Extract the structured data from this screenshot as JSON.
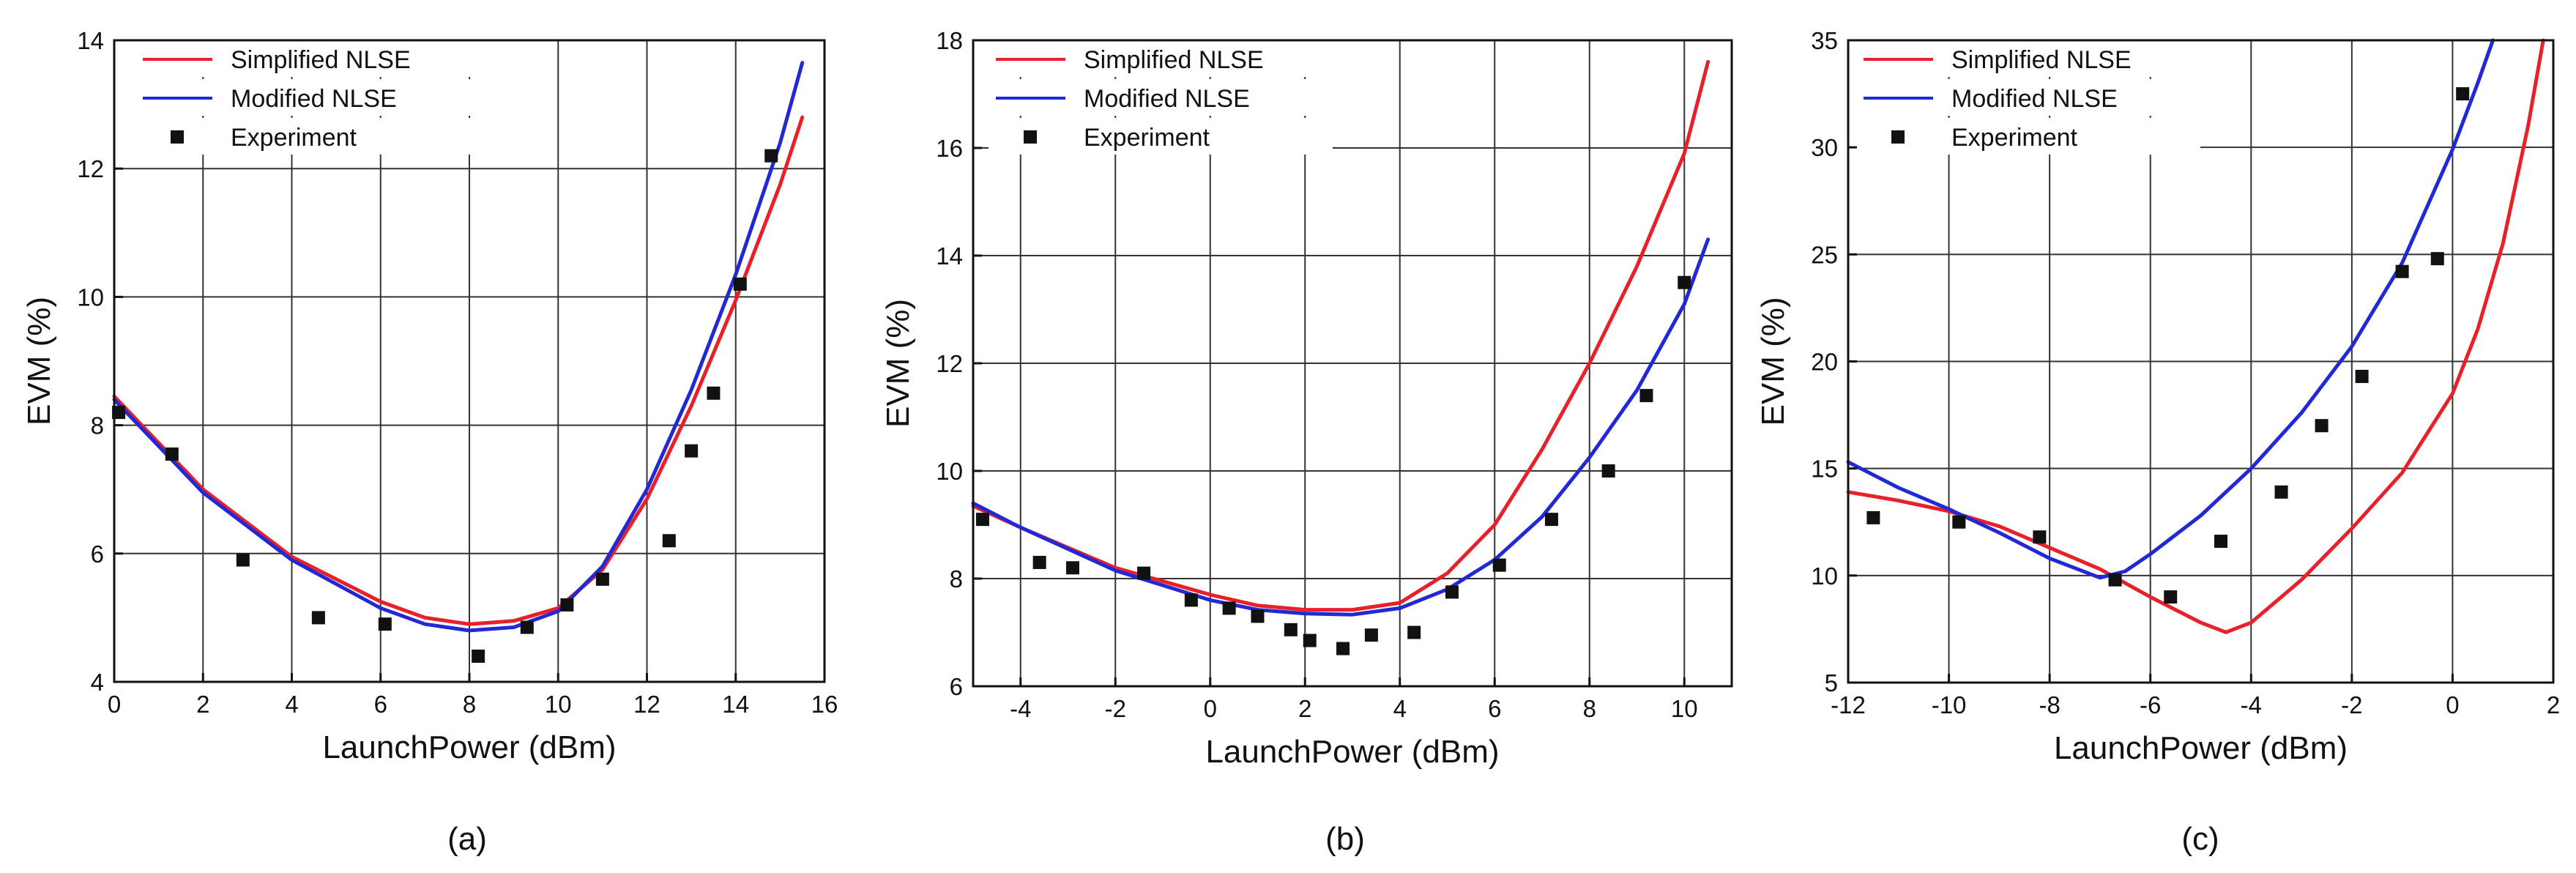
{
  "colors": {
    "simplified": "#e8202a",
    "modified": "#2128d4",
    "experiment": "#111111",
    "grid": "#333333"
  },
  "chart_data": [
    {
      "type": "line",
      "panel_label": "(a)",
      "xlabel": "LaunchPower (dBm)",
      "ylabel": "EVM (%)",
      "xlim": [
        0,
        16
      ],
      "ylim": [
        4,
        14
      ],
      "xticks": [
        0,
        2,
        4,
        6,
        8,
        10,
        12,
        14,
        16
      ],
      "yticks": [
        4,
        6,
        8,
        10,
        12,
        14
      ],
      "xgrid": [
        2,
        4,
        6,
        8,
        10,
        12,
        14
      ],
      "ygrid": [
        6,
        8,
        10,
        12
      ],
      "grid": true,
      "legend": {
        "placement": "top-left",
        "entries": [
          "Simplified NLSE",
          "Modified NLSE",
          "Experiment"
        ]
      },
      "series": [
        {
          "name": "Simplified NLSE",
          "kind": "line",
          "color_key": "simplified",
          "x": [
            0,
            2,
            4,
            6,
            7,
            8,
            9,
            10,
            11,
            12,
            13,
            14,
            15,
            15.5
          ],
          "y": [
            8.45,
            7.0,
            5.95,
            5.25,
            5.0,
            4.9,
            4.95,
            5.15,
            5.75,
            6.85,
            8.3,
            9.95,
            11.75,
            12.8
          ]
        },
        {
          "name": "Modified NLSE",
          "kind": "line",
          "color_key": "modified",
          "x": [
            0,
            2,
            4,
            6,
            7,
            8,
            9,
            10,
            11,
            12,
            13,
            14,
            15,
            15.5
          ],
          "y": [
            8.4,
            6.95,
            5.9,
            5.15,
            4.9,
            4.8,
            4.85,
            5.1,
            5.8,
            7.0,
            8.55,
            10.35,
            12.4,
            13.65
          ]
        },
        {
          "name": "Experiment",
          "kind": "scatter",
          "color_key": "experiment",
          "x": [
            0.1,
            1.3,
            2.9,
            4.6,
            6.1,
            8.2,
            9.3,
            10.2,
            11.0,
            12.5,
            13.0,
            13.5,
            14.1,
            14.8
          ],
          "y": [
            8.2,
            7.55,
            5.9,
            5.0,
            4.9,
            4.4,
            4.85,
            5.2,
            5.6,
            6.2,
            7.6,
            8.5,
            10.2,
            12.2
          ]
        }
      ]
    },
    {
      "type": "line",
      "panel_label": "(b)",
      "xlabel": "LaunchPower (dBm)",
      "ylabel": "EVM (%)",
      "xlim": [
        -5,
        11
      ],
      "ylim": [
        6,
        18
      ],
      "xticks": [
        -4,
        -2,
        0,
        2,
        4,
        6,
        8,
        10
      ],
      "yticks": [
        6,
        8,
        10,
        12,
        14,
        16,
        18
      ],
      "xgrid": [
        -4,
        -2,
        0,
        2,
        4,
        6,
        8,
        10
      ],
      "ygrid": [
        8,
        10,
        12,
        14,
        16
      ],
      "grid": true,
      "legend": {
        "placement": "top-left",
        "entries": [
          "Simplified NLSE",
          "Modified NLSE",
          "Experiment"
        ]
      },
      "series": [
        {
          "name": "Simplified NLSE",
          "kind": "line",
          "color_key": "simplified",
          "x": [
            -5,
            -4,
            -2,
            0,
            1,
            2,
            3,
            4,
            5,
            6,
            7,
            8,
            9,
            10,
            10.5
          ],
          "y": [
            9.35,
            8.95,
            8.2,
            7.7,
            7.5,
            7.42,
            7.42,
            7.55,
            8.1,
            9.0,
            10.4,
            12.0,
            13.8,
            15.9,
            17.6
          ]
        },
        {
          "name": "Modified NLSE",
          "kind": "line",
          "color_key": "modified",
          "x": [
            -5,
            -4,
            -2,
            0,
            1,
            2,
            3,
            4,
            5,
            6,
            7,
            8,
            9,
            10,
            10.5
          ],
          "y": [
            9.4,
            8.95,
            8.15,
            7.6,
            7.42,
            7.35,
            7.33,
            7.45,
            7.8,
            8.35,
            9.15,
            10.25,
            11.5,
            13.1,
            14.3
          ]
        },
        {
          "name": "Experiment",
          "kind": "scatter",
          "color_key": "experiment",
          "x": [
            -4.8,
            -3.6,
            -2.9,
            -1.4,
            -0.4,
            0.4,
            1.0,
            1.7,
            2.1,
            2.8,
            3.4,
            4.3,
            5.1,
            6.1,
            7.2,
            8.4,
            9.2,
            10.0
          ],
          "y": [
            9.1,
            8.3,
            8.2,
            8.1,
            7.6,
            7.45,
            7.3,
            7.05,
            6.85,
            6.7,
            6.95,
            7.0,
            7.75,
            8.25,
            9.1,
            10.0,
            11.4,
            13.5
          ]
        }
      ]
    },
    {
      "type": "line",
      "panel_label": "(c)",
      "xlabel": "LaunchPower (dBm)",
      "ylabel": "EVM (%)",
      "xlim": [
        -12,
        2
      ],
      "ylim": [
        5,
        35
      ],
      "xticks": [
        -12,
        -10,
        -8,
        -6,
        -4,
        -2,
        0,
        2
      ],
      "yticks": [
        5,
        10,
        15,
        20,
        25,
        30,
        35
      ],
      "xgrid": [
        -10,
        -8,
        -6,
        -4,
        -2,
        0
      ],
      "ygrid": [
        10,
        15,
        20,
        25,
        30
      ],
      "grid": true,
      "legend": {
        "placement": "top-left",
        "entries": [
          "Simplified NLSE",
          "Modified NLSE",
          "Experiment"
        ]
      },
      "series": [
        {
          "name": "Simplified NLSE",
          "kind": "line",
          "color_key": "simplified",
          "x": [
            -12,
            -11,
            -10,
            -9,
            -8,
            -7,
            -6,
            -5,
            -4.5,
            -4,
            -3,
            -2,
            -1,
            0,
            0.5,
            1,
            1.5,
            1.8
          ],
          "y": [
            13.9,
            13.5,
            13.0,
            12.3,
            11.3,
            10.3,
            9.0,
            7.8,
            7.35,
            7.8,
            9.8,
            12.2,
            14.8,
            18.5,
            21.5,
            25.5,
            31.0,
            35.0
          ]
        },
        {
          "name": "Modified NLSE",
          "kind": "line",
          "color_key": "modified",
          "x": [
            -12,
            -11,
            -10,
            -9,
            -8,
            -7,
            -6.5,
            -6,
            -5,
            -4,
            -3,
            -2,
            -1,
            0,
            0.5,
            0.8
          ],
          "y": [
            15.3,
            14.1,
            13.1,
            12.0,
            10.8,
            9.9,
            10.2,
            11.0,
            12.8,
            15.0,
            17.6,
            20.7,
            24.6,
            29.9,
            33.0,
            35.0
          ]
        },
        {
          "name": "Experiment",
          "kind": "scatter",
          "color_key": "experiment",
          "x": [
            -11.5,
            -9.8,
            -8.2,
            -6.7,
            -5.6,
            -4.6,
            -3.4,
            -2.6,
            -1.8,
            -1.0,
            -0.3,
            0.2
          ],
          "y": [
            12.7,
            12.5,
            11.8,
            9.8,
            9.0,
            11.6,
            13.9,
            17.0,
            19.3,
            24.2,
            24.8,
            32.5
          ]
        }
      ]
    }
  ]
}
